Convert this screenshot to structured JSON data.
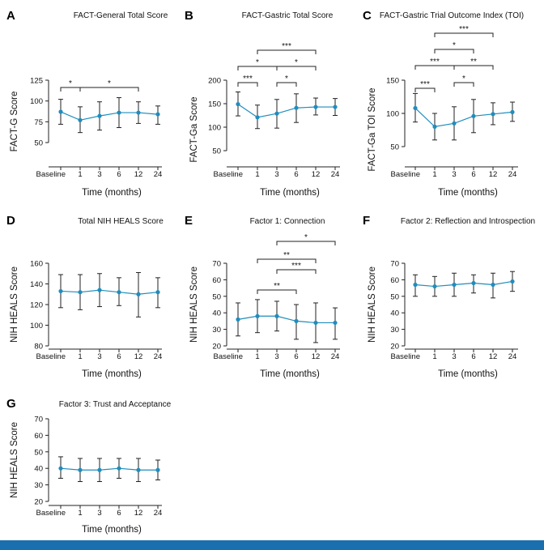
{
  "figure": {
    "accent_color": "#1a6faf",
    "line_color": "#1f8dbe"
  },
  "chart_data": [
    {
      "panel": "A",
      "type": "line",
      "title": "FACT-General Total Score",
      "xlabel": "Time (months)",
      "ylabel": "FACT-G Score",
      "categories": [
        "Baseline",
        "1",
        "3",
        "6",
        "12",
        "24"
      ],
      "x": [
        0,
        1,
        3,
        6,
        12,
        24
      ],
      "mean": [
        87,
        77,
        82,
        86,
        86,
        84
      ],
      "lower": [
        72,
        62,
        65,
        68,
        73,
        72
      ],
      "upper": [
        102,
        93,
        99,
        104,
        99,
        94
      ],
      "ylim": [
        50,
        125
      ],
      "yticks": [
        50,
        75,
        100,
        125
      ],
      "significance": [
        {
          "from": "Baseline",
          "to": "1",
          "label": "*"
        },
        {
          "from": "1",
          "to": "12",
          "label": "*"
        }
      ]
    },
    {
      "panel": "B",
      "type": "line",
      "title": "FACT-Gastric Total Score",
      "xlabel": "Time (months)",
      "ylabel": "FACT-Ga Score",
      "categories": [
        "Baseline",
        "1",
        "3",
        "6",
        "12",
        "24"
      ],
      "x": [
        0,
        1,
        3,
        6,
        12,
        24
      ],
      "mean": [
        149,
        121,
        129,
        141,
        143,
        143
      ],
      "lower": [
        124,
        97,
        98,
        110,
        126,
        125
      ],
      "upper": [
        175,
        147,
        159,
        171,
        162,
        161
      ],
      "ylim": [
        50,
        200
      ],
      "yticks": [
        50,
        100,
        150,
        200
      ],
      "significance": [
        {
          "from": "Baseline",
          "to": "1",
          "label": "***"
        },
        {
          "from": "3",
          "to": "6",
          "label": "*"
        },
        {
          "from": "Baseline",
          "to": "3",
          "label": "*"
        },
        {
          "from": "3",
          "to": "12",
          "label": "*"
        },
        {
          "from": "1",
          "to": "12",
          "label": "***"
        }
      ]
    },
    {
      "panel": "C",
      "type": "line",
      "title": "FACT-Gastric Trial Outcome Index (TOI)",
      "xlabel": "Time (months)",
      "ylabel": "FACT-Ga TOI Score",
      "categories": [
        "Baseline",
        "1",
        "3",
        "6",
        "12",
        "24"
      ],
      "x": [
        0,
        1,
        3,
        6,
        12,
        24
      ],
      "mean": [
        108,
        80,
        85,
        96,
        99,
        102
      ],
      "lower": [
        87,
        60,
        60,
        71,
        83,
        88
      ],
      "upper": [
        130,
        100,
        110,
        121,
        116,
        117
      ],
      "ylim": [
        50,
        150
      ],
      "yticks": [
        50,
        100,
        150
      ],
      "significance": [
        {
          "from": "Baseline",
          "to": "1",
          "label": "***"
        },
        {
          "from": "3",
          "to": "6",
          "label": "*"
        },
        {
          "from": "Baseline",
          "to": "3",
          "label": "***"
        },
        {
          "from": "3",
          "to": "12",
          "label": "**"
        },
        {
          "from": "1",
          "to": "6",
          "label": "*"
        },
        {
          "from": "1",
          "to": "12",
          "label": "***"
        }
      ]
    },
    {
      "panel": "D",
      "type": "line",
      "title": "Total NIH HEALS Score",
      "xlabel": "Time (months)",
      "ylabel": "NIH HEALS Score",
      "categories": [
        "Baseline",
        "1",
        "3",
        "6",
        "12",
        "24"
      ],
      "x": [
        0,
        1,
        3,
        6,
        12,
        24
      ],
      "mean": [
        133,
        132,
        134,
        132,
        130,
        132
      ],
      "lower": [
        117,
        115,
        118,
        119,
        108,
        117
      ],
      "upper": [
        149,
        149,
        150,
        146,
        151,
        146
      ],
      "ylim": [
        80,
        160
      ],
      "yticks": [
        80,
        100,
        120,
        140,
        160
      ],
      "significance": []
    },
    {
      "panel": "E",
      "type": "line",
      "title": "Factor 1: Connection",
      "xlabel": "Time (months)",
      "ylabel": "NIH HEALS Score",
      "categories": [
        "Baseline",
        "1",
        "3",
        "6",
        "12",
        "24"
      ],
      "x": [
        0,
        1,
        3,
        6,
        12,
        24
      ],
      "mean": [
        36,
        38,
        38,
        35,
        34,
        34
      ],
      "lower": [
        26,
        28,
        29,
        24,
        22,
        24
      ],
      "upper": [
        46,
        48,
        47,
        45,
        46,
        43
      ],
      "ylim": [
        20,
        70
      ],
      "yticks": [
        20,
        30,
        40,
        50,
        60,
        70
      ],
      "significance": [
        {
          "from": "1",
          "to": "6",
          "label": "**"
        },
        {
          "from": "3",
          "to": "12",
          "label": "***"
        },
        {
          "from": "1",
          "to": "12",
          "label": "**"
        },
        {
          "from": "3",
          "to": "24",
          "label": "*"
        }
      ]
    },
    {
      "panel": "F",
      "type": "line",
      "title": "Factor 2: Reflection and Introspection",
      "xlabel": "Time (months)",
      "ylabel": "NIH HEALS Score",
      "categories": [
        "Baseline",
        "1",
        "3",
        "6",
        "12",
        "24"
      ],
      "x": [
        0,
        1,
        3,
        6,
        12,
        24
      ],
      "mean": [
        57,
        56,
        57,
        58,
        57,
        59
      ],
      "lower": [
        50,
        50,
        50,
        52,
        49,
        53
      ],
      "upper": [
        63,
        62,
        64,
        63,
        64,
        65
      ],
      "ylim": [
        20,
        70
      ],
      "yticks": [
        20,
        30,
        40,
        50,
        60,
        70
      ],
      "significance": []
    },
    {
      "panel": "G",
      "type": "line",
      "title": "Factor 3: Trust and Acceptance",
      "xlabel": "Time (months)",
      "ylabel": "NIH HEALS Score",
      "categories": [
        "Baseline",
        "1",
        "3",
        "6",
        "12",
        "24"
      ],
      "x": [
        0,
        1,
        3,
        6,
        12,
        24
      ],
      "mean": [
        40,
        39,
        39,
        40,
        39,
        39
      ],
      "lower": [
        34,
        32,
        32,
        34,
        32,
        33
      ],
      "upper": [
        47,
        46,
        46,
        46,
        46,
        45
      ],
      "ylim": [
        20,
        70
      ],
      "yticks": [
        20,
        30,
        40,
        50,
        60,
        70
      ],
      "significance": []
    }
  ]
}
